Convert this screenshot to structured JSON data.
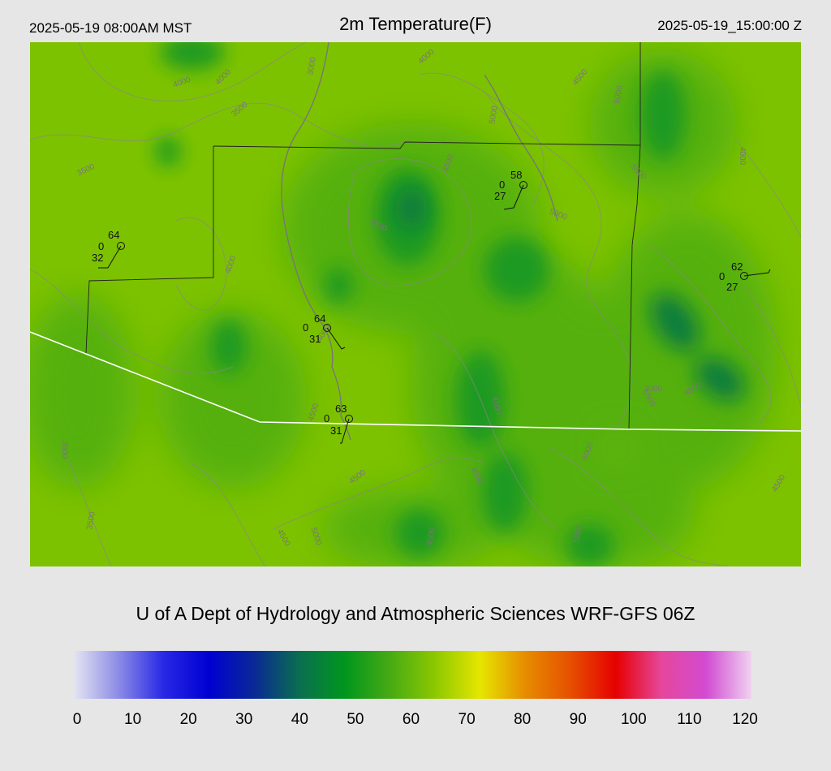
{
  "header": {
    "local_time": "2025-05-19 08:00AM MST",
    "title": "2m Temperature(F)",
    "utc_time": "2025-05-19_15:00:00 Z"
  },
  "credit": "U of A Dept of Hydrology and Atmospheric Sciences WRF-GFS 06Z",
  "colorbar": {
    "min": 0,
    "max": 120,
    "tick_labels": [
      "0",
      "10",
      "20",
      "30",
      "40",
      "50",
      "60",
      "70",
      "80",
      "90",
      "100",
      "110",
      "120"
    ],
    "stops": [
      "#e6e6f2",
      "#8c8ce6",
      "#2828e6",
      "#0000d2",
      "#0a2896",
      "#0a6e50",
      "#00961e",
      "#46aa14",
      "#8cc800",
      "#e6e600",
      "#e68c00",
      "#e65000",
      "#e60000",
      "#e6469b",
      "#d24bd2",
      "#f0d2f0"
    ]
  },
  "map_colors": {
    "field_light": "#7dc200",
    "field_mid": "#55b010",
    "field_dark": "#1f9a20",
    "field_darkest": "#0b7e3e",
    "border_state": "#ffffff",
    "border_county": "#222222",
    "contour": "#888888",
    "river": "#777777"
  },
  "contour_labels": [
    {
      "text": "4000"
    },
    {
      "text": "4000"
    },
    {
      "text": "3500"
    },
    {
      "text": "3500"
    },
    {
      "text": "3000"
    },
    {
      "text": "4000"
    },
    {
      "text": "4000"
    },
    {
      "text": "4500"
    },
    {
      "text": "5000"
    },
    {
      "text": "5500"
    },
    {
      "text": "5000"
    },
    {
      "text": "5500"
    },
    {
      "text": "5000"
    },
    {
      "text": "4000"
    },
    {
      "text": "4500"
    },
    {
      "text": "4000"
    },
    {
      "text": "3500"
    },
    {
      "text": "4500"
    },
    {
      "text": "5000"
    },
    {
      "text": "5500"
    },
    {
      "text": "3500"
    },
    {
      "text": "4500"
    },
    {
      "text": "4500"
    },
    {
      "text": "4500"
    },
    {
      "text": "5000"
    },
    {
      "text": "4500"
    },
    {
      "text": "3000"
    },
    {
      "text": "4500"
    },
    {
      "text": "4000"
    },
    {
      "text": "5000"
    },
    {
      "text": "4500"
    }
  ],
  "stations": [
    {
      "id": "station-a",
      "temp": "64",
      "code": "0",
      "dew": "32"
    },
    {
      "id": "station-b",
      "temp": "58",
      "code": "0",
      "dew": "27"
    },
    {
      "id": "station-c",
      "temp": "62",
      "code": "0",
      "dew": "27"
    },
    {
      "id": "station-d",
      "temp": "64",
      "code": "0",
      "dew": "31"
    },
    {
      "id": "station-e",
      "temp": "63",
      "code": "0",
      "dew": "31"
    }
  ]
}
